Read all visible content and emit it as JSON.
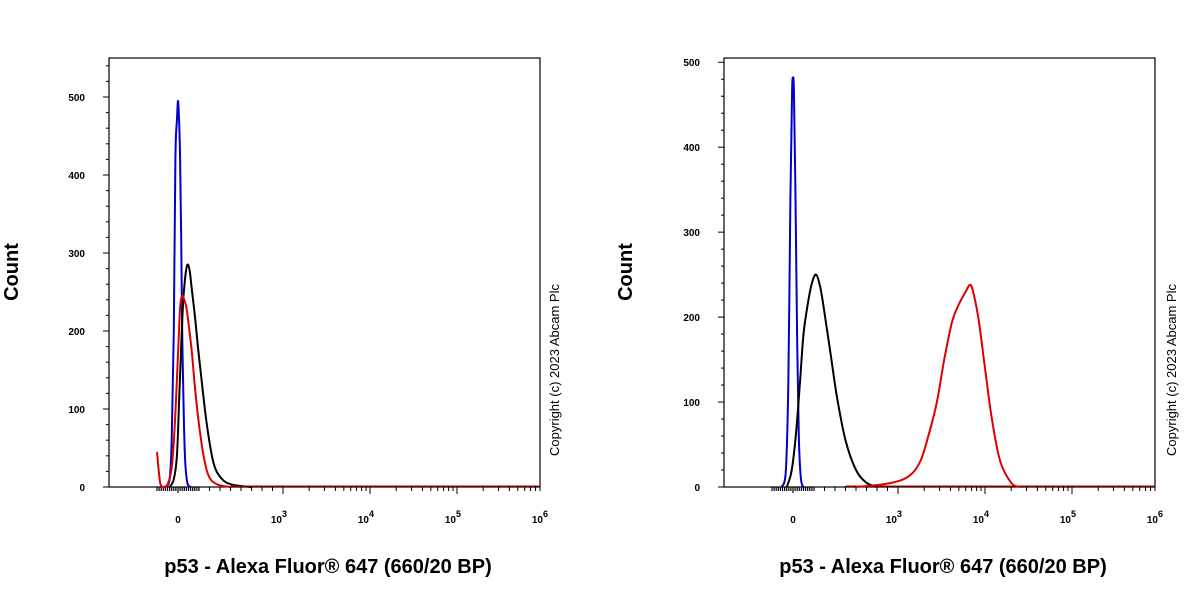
{
  "chart_data": [
    {
      "type": "line",
      "title": "",
      "xlabel": "p53 - Alexa Fluor® 647 (660/20 BP)",
      "ylabel": "Count",
      "copyright": "Copyright (c) 2023 Abcam Plc",
      "x_scale": "biexponential",
      "xlim": [
        -200,
        1000000
      ],
      "ylim": [
        0,
        550
      ],
      "yticks": [
        {
          "value": 0,
          "label": "0"
        },
        {
          "value": 100,
          "label": "100"
        },
        {
          "value": 200,
          "label": "200"
        },
        {
          "value": 300,
          "label": "300"
        },
        {
          "value": 400,
          "label": "400"
        },
        {
          "value": 500,
          "label": "500"
        }
      ],
      "xticks": [
        {
          "value": 0,
          "label": "0"
        },
        {
          "value": 1000,
          "base": "10",
          "exp": "3"
        },
        {
          "value": 10000,
          "base": "10",
          "exp": "4"
        },
        {
          "value": 100000,
          "base": "10",
          "exp": "5"
        },
        {
          "value": 1000000,
          "base": "10",
          "exp": "6"
        }
      ],
      "series": [
        {
          "color": "#0000cc",
          "x": [
            -120,
            -80,
            -60,
            -40,
            -25,
            -10,
            0,
            10,
            20,
            30,
            40,
            55,
            70,
            90,
            120
          ],
          "y": [
            0,
            10,
            60,
            200,
            420,
            470,
            495,
            470,
            420,
            320,
            200,
            90,
            30,
            5,
            0
          ]
        },
        {
          "color": "#000000",
          "x": [
            -80,
            -40,
            -10,
            10,
            30,
            50,
            70,
            90,
            110,
            130,
            160,
            190,
            230,
            280,
            340,
            420,
            520,
            700
          ],
          "y": [
            0,
            10,
            40,
            110,
            180,
            240,
            270,
            285,
            278,
            255,
            220,
            180,
            130,
            75,
            30,
            10,
            3,
            0
          ]
        },
        {
          "color": "#dd0000",
          "x": [
            -200,
            -170,
            -140,
            -100,
            -60,
            -30,
            0,
            20,
            40,
            60,
            80,
            100,
            130,
            160,
            200,
            250,
            300,
            380,
            500
          ],
          "y": [
            45,
            5,
            0,
            3,
            25,
            80,
            170,
            230,
            245,
            240,
            230,
            210,
            175,
            130,
            80,
            35,
            12,
            3,
            0
          ]
        }
      ]
    },
    {
      "type": "line",
      "title": "",
      "xlabel": "p53 - Alexa Fluor® 647 (660/20 BP)",
      "ylabel": "Count",
      "copyright": "Copyright (c) 2023 Abcam Plc",
      "x_scale": "biexponential",
      "xlim": [
        -200,
        1000000
      ],
      "ylim": [
        0,
        505
      ],
      "yticks": [
        {
          "value": 0,
          "label": "0"
        },
        {
          "value": 100,
          "label": "100"
        },
        {
          "value": 200,
          "label": "200"
        },
        {
          "value": 300,
          "label": "300"
        },
        {
          "value": 400,
          "label": "400"
        },
        {
          "value": 500,
          "label": "500"
        }
      ],
      "xticks": [
        {
          "value": 0,
          "label": "0"
        },
        {
          "value": 1000,
          "base": "10",
          "exp": "3"
        },
        {
          "value": 10000,
          "base": "10",
          "exp": "4"
        },
        {
          "value": 100000,
          "base": "10",
          "exp": "5"
        },
        {
          "value": 1000000,
          "base": "10",
          "exp": "6"
        }
      ],
      "series": [
        {
          "color": "#0000cc",
          "x": [
            -110,
            -70,
            -45,
            -25,
            -10,
            0,
            10,
            25,
            40,
            55,
            75,
            100
          ],
          "y": [
            0,
            15,
            120,
            340,
            460,
            482,
            460,
            330,
            170,
            60,
            10,
            0
          ]
        },
        {
          "color": "#000000",
          "x": [
            -60,
            -20,
            10,
            40,
            70,
            100,
            140,
            180,
            220,
            260,
            300,
            360,
            420,
            500,
            600,
            700,
            800
          ],
          "y": [
            0,
            15,
            40,
            80,
            130,
            180,
            215,
            240,
            250,
            235,
            205,
            155,
            105,
            55,
            20,
            5,
            0
          ]
        },
        {
          "color": "#dd0000",
          "x": [
            600,
            900,
            1300,
            1800,
            2300,
            2800,
            3400,
            4200,
            5000,
            6000,
            6800,
            7500,
            8500,
            10000,
            12000,
            15000,
            20000,
            25000
          ],
          "y": [
            0,
            4,
            12,
            30,
            65,
            100,
            150,
            195,
            215,
            230,
            238,
            225,
            195,
            140,
            80,
            30,
            5,
            0
          ]
        }
      ]
    }
  ]
}
